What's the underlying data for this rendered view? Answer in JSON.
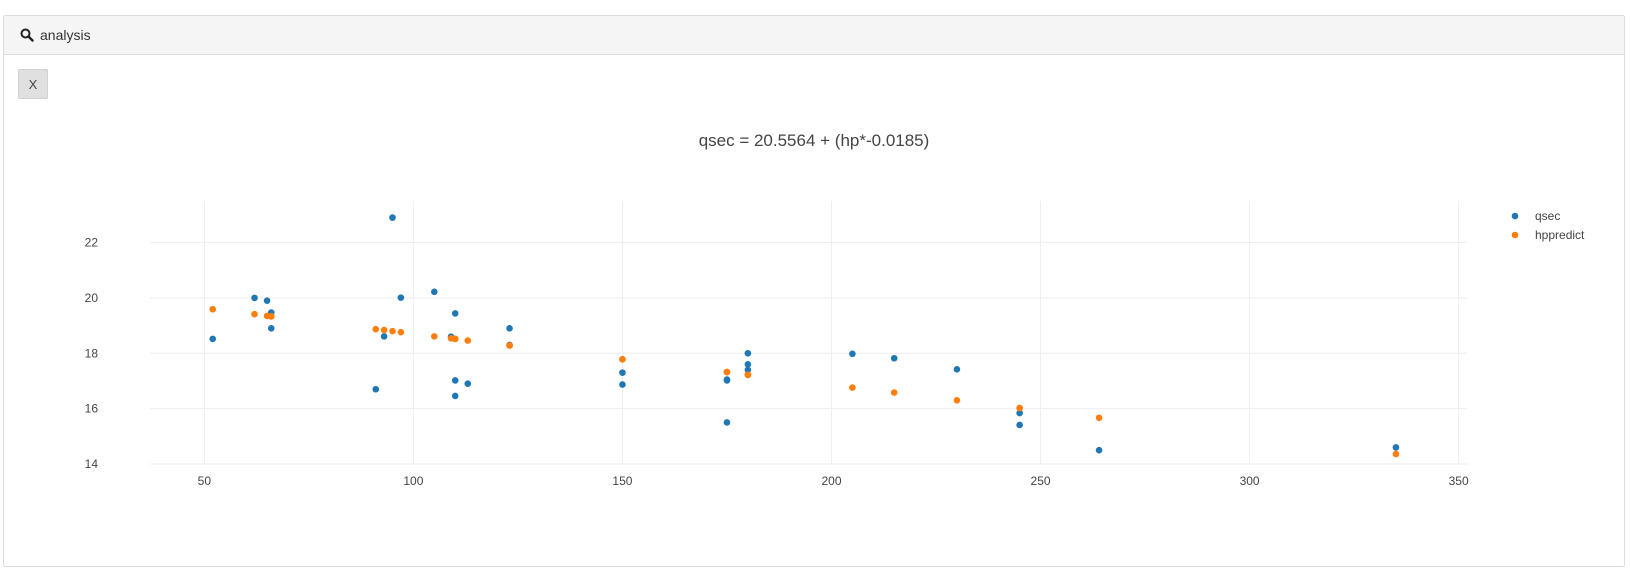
{
  "panel": {
    "title": "analysis",
    "close_label": "X"
  },
  "colors": {
    "qsec": "#1f77b4",
    "hppredict": "#ff7f0e",
    "grid": "#eeeeee"
  },
  "chart_data": {
    "type": "scatter",
    "title": "qsec = 20.5564 + (hp*-0.0185)",
    "xlabel": "",
    "ylabel": "",
    "xlim": [
      37,
      352
    ],
    "ylim": [
      14,
      23.5
    ],
    "x_ticks": [
      50,
      100,
      150,
      200,
      250,
      300,
      350
    ],
    "y_ticks": [
      14,
      16,
      18,
      20,
      22
    ],
    "legend_position": "top-right",
    "series": [
      {
        "name": "qsec",
        "points": [
          [
            110,
            16.46
          ],
          [
            110,
            17.02
          ],
          [
            93,
            18.61
          ],
          [
            110,
            19.44
          ],
          [
            175,
            17.02
          ],
          [
            105,
            20.22
          ],
          [
            245,
            15.84
          ],
          [
            62,
            20.0
          ],
          [
            95,
            22.9
          ],
          [
            123,
            18.3
          ],
          [
            123,
            18.9
          ],
          [
            180,
            17.4
          ],
          [
            180,
            17.6
          ],
          [
            180,
            18.0
          ],
          [
            205,
            17.98
          ],
          [
            215,
            17.82
          ],
          [
            230,
            17.42
          ],
          [
            66,
            19.47
          ],
          [
            52,
            18.52
          ],
          [
            65,
            19.9
          ],
          [
            97,
            20.01
          ],
          [
            150,
            16.87
          ],
          [
            150,
            17.3
          ],
          [
            245,
            15.41
          ],
          [
            175,
            17.05
          ],
          [
            66,
            18.9
          ],
          [
            91,
            16.7
          ],
          [
            113,
            16.9
          ],
          [
            264,
            14.5
          ],
          [
            175,
            15.5
          ],
          [
            335,
            14.6
          ],
          [
            109,
            18.6
          ]
        ]
      },
      {
        "name": "hppredict",
        "points": [
          [
            110,
            18.52
          ],
          [
            110,
            18.52
          ],
          [
            93,
            18.84
          ],
          [
            110,
            18.52
          ],
          [
            175,
            17.32
          ],
          [
            105,
            18.61
          ],
          [
            245,
            16.02
          ],
          [
            62,
            19.41
          ],
          [
            95,
            18.8
          ],
          [
            123,
            18.28
          ],
          [
            123,
            18.28
          ],
          [
            180,
            17.22
          ],
          [
            180,
            17.22
          ],
          [
            180,
            17.22
          ],
          [
            205,
            16.76
          ],
          [
            215,
            16.58
          ],
          [
            230,
            16.3
          ],
          [
            66,
            19.33
          ],
          [
            52,
            19.59
          ],
          [
            65,
            19.35
          ],
          [
            97,
            18.76
          ],
          [
            150,
            17.78
          ],
          [
            150,
            17.78
          ],
          [
            245,
            16.02
          ],
          [
            175,
            17.32
          ],
          [
            66,
            19.33
          ],
          [
            91,
            18.87
          ],
          [
            113,
            18.46
          ],
          [
            264,
            15.67
          ],
          [
            175,
            17.32
          ],
          [
            335,
            14.36
          ],
          [
            109,
            18.54
          ]
        ]
      }
    ]
  }
}
